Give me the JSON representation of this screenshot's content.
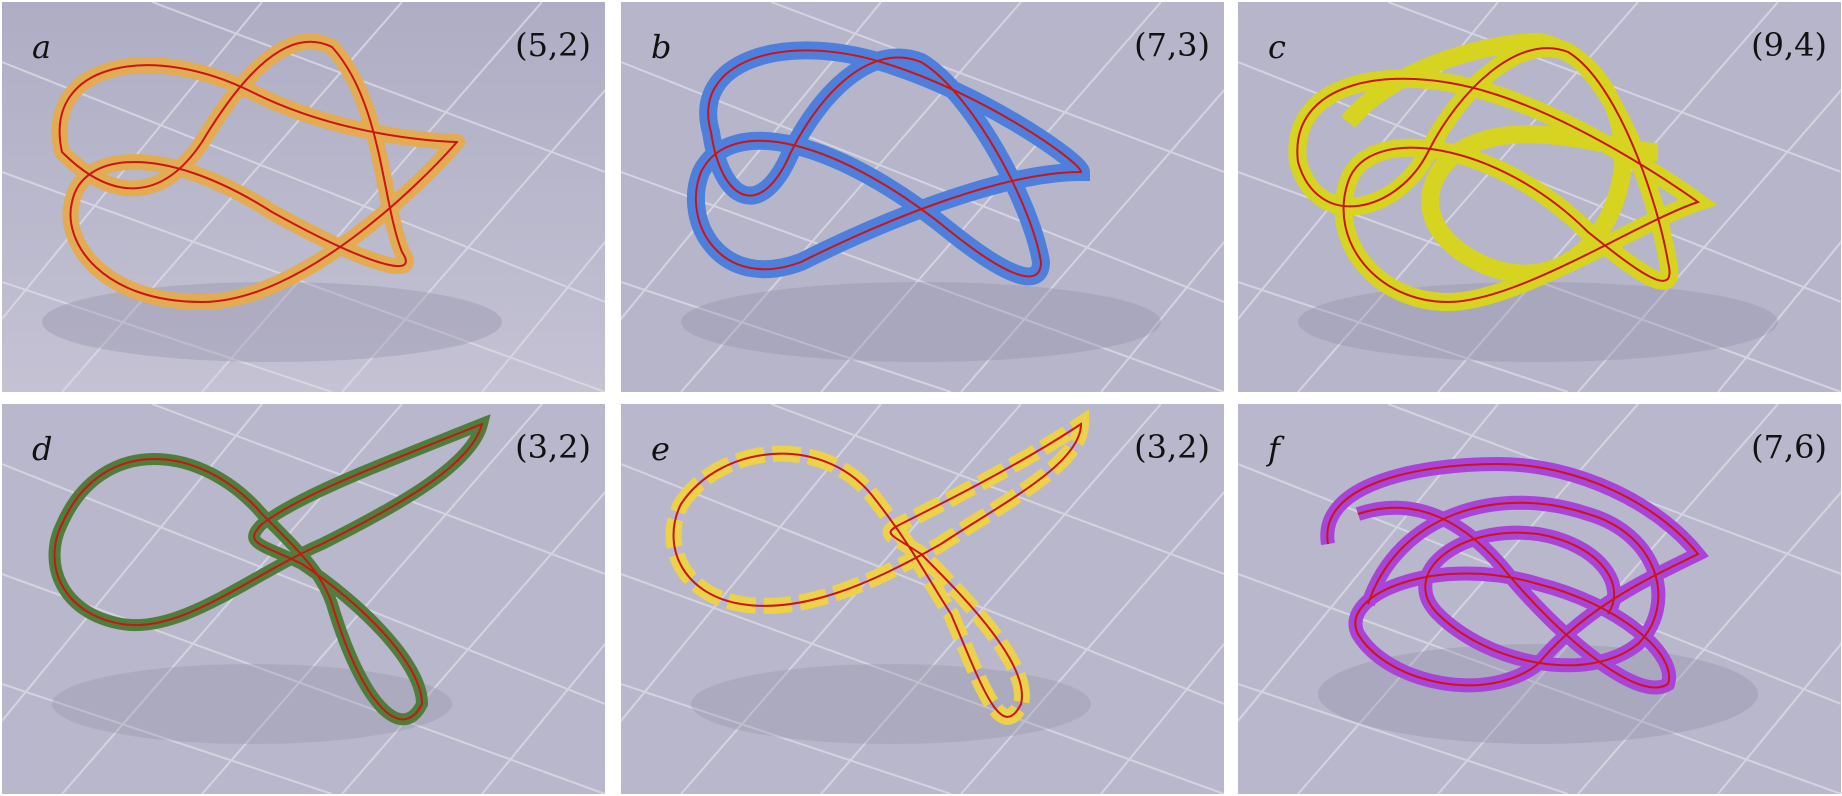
{
  "panels": [
    {
      "letter": "a",
      "param": "(5,2)",
      "color": "#e3ac52"
    },
    {
      "letter": "b",
      "param": "(7,3)",
      "color": "#4f7fdc"
    },
    {
      "letter": "c",
      "param": "(9,4)",
      "color": "#d7d321"
    },
    {
      "letter": "d",
      "param": "(3,2)",
      "color": "#4f7d3c"
    },
    {
      "letter": "e",
      "param": "(3,2)",
      "color": "#ecd14b"
    },
    {
      "letter": "f",
      "param": "(7,6)",
      "color": "#a944d8"
    }
  ],
  "centerline_color": "#cc1414"
}
